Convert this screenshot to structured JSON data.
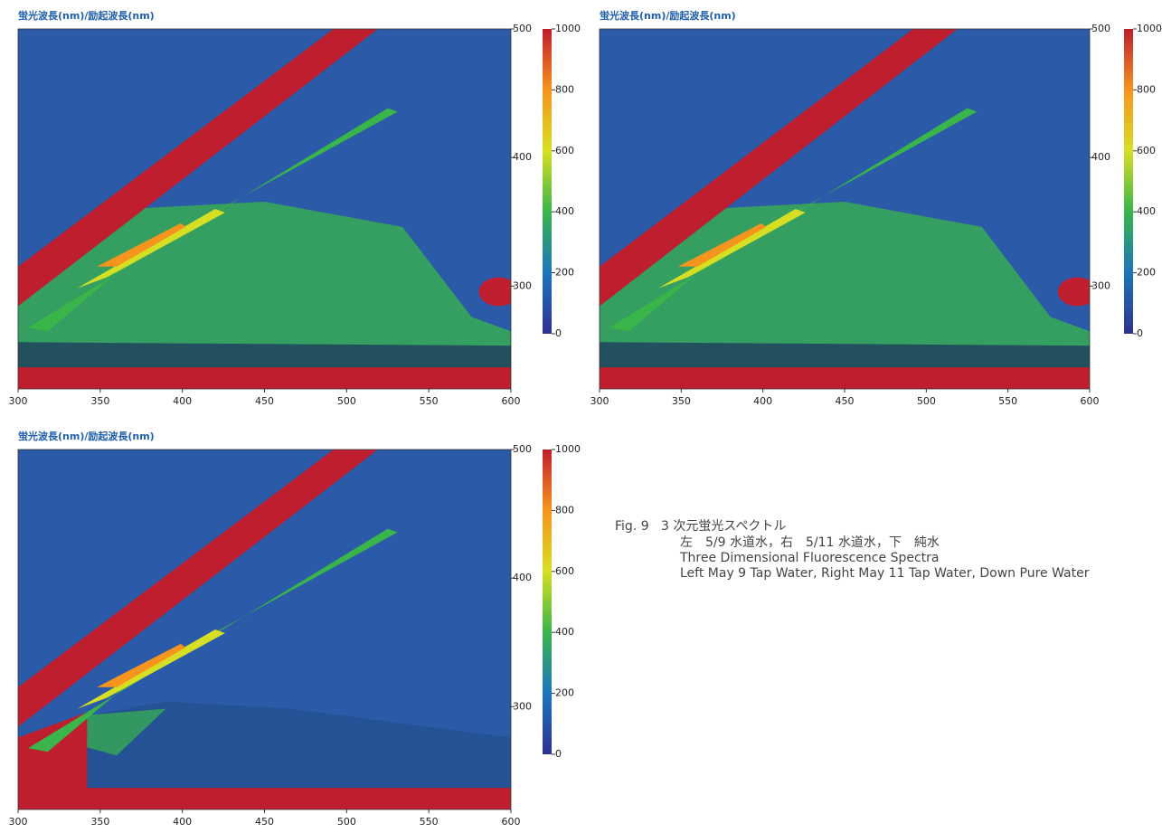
{
  "chart_data": [
    {
      "type": "contour",
      "title": "蛍光波長(nm)/励起波長(nm)",
      "xlim": [
        300,
        600
      ],
      "xticks": [
        300,
        350,
        400,
        450,
        500,
        550,
        600
      ],
      "ylim": [
        220,
        500
      ],
      "yticks": [
        300,
        400,
        500
      ],
      "colorbar_lim": [
        0,
        1000
      ],
      "colorbar_ticks": [
        0,
        200,
        400,
        600,
        800,
        1000
      ],
      "colorscale": [
        "#2e3192",
        "#1c75bc",
        "#39b54a",
        "#d7df23",
        "#f7941d",
        "#be1e2d"
      ]
    },
    {
      "type": "contour",
      "title": "蛍光波長(nm)/励起波長(nm)",
      "xlim": [
        300,
        600
      ],
      "xticks": [
        300,
        350,
        400,
        450,
        500,
        550,
        600
      ],
      "ylim": [
        220,
        500
      ],
      "yticks": [
        300,
        400,
        500
      ],
      "colorbar_lim": [
        0,
        1000
      ],
      "colorbar_ticks": [
        0,
        200,
        400,
        600,
        800,
        1000
      ],
      "colorscale": [
        "#2e3192",
        "#1c75bc",
        "#39b54a",
        "#d7df23",
        "#f7941d",
        "#be1e2d"
      ]
    },
    {
      "type": "contour",
      "title": "蛍光波長(nm)/励起波長(nm)",
      "xlim": [
        300,
        600
      ],
      "xticks": [
        300,
        350,
        400,
        450,
        500,
        550,
        600
      ],
      "ylim": [
        220,
        500
      ],
      "yticks": [
        300,
        400,
        500
      ],
      "colorbar_lim": [
        0,
        1000
      ],
      "colorbar_ticks": [
        0,
        200,
        400,
        600,
        800,
        1000
      ],
      "colorscale": [
        "#2e3192",
        "#1c75bc",
        "#39b54a",
        "#d7df23",
        "#f7941d",
        "#be1e2d"
      ]
    }
  ],
  "caption": {
    "figure": "Fig. 9",
    "title": "3 次元蛍光スペクトル",
    "lines": [
      "左　5/9 水道水，右　5/11 水道水，下　純水",
      "Three Dimensional Fluorescence Spectra",
      "Left May 9 Tap Water, Right May 11 Tap Water, Down Pure Water"
    ]
  }
}
